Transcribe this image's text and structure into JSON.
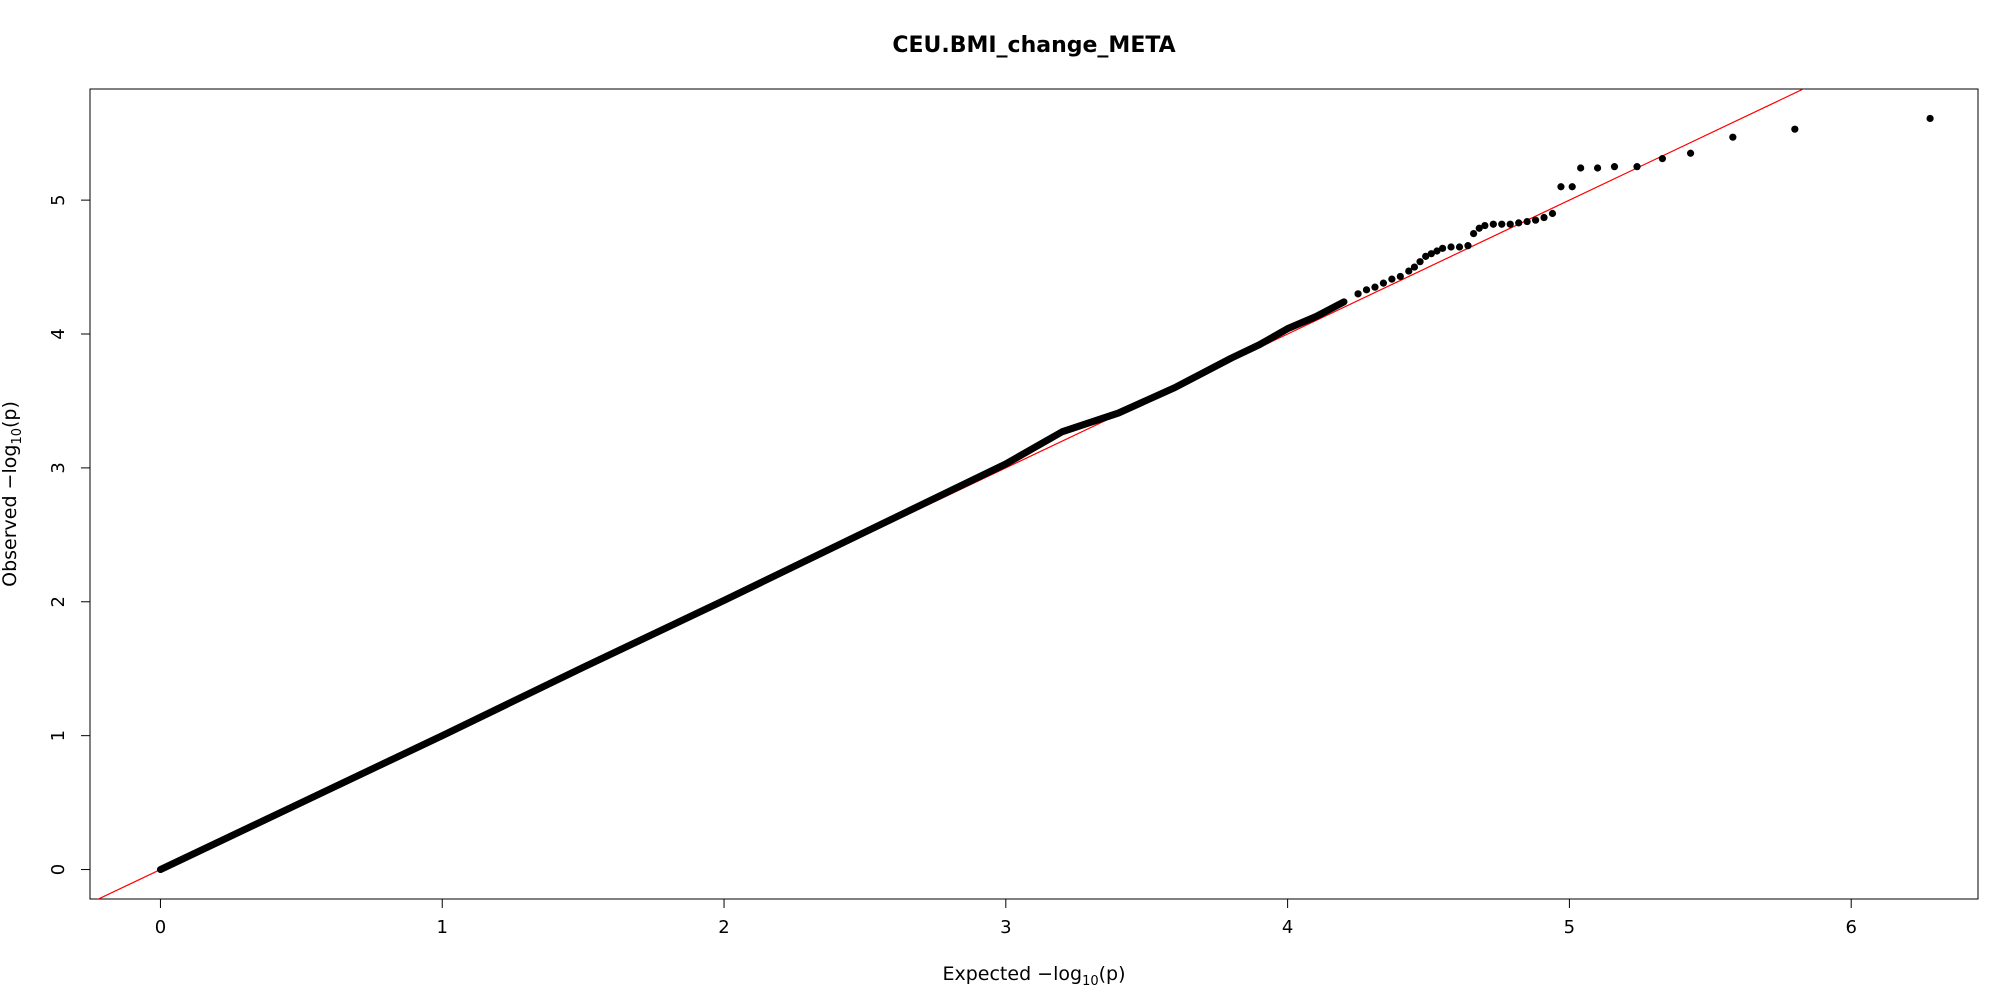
{
  "chart_data": {
    "type": "scatter",
    "title": "CEU.BMI_change_META",
    "xlabel": "Expected  −log10(p)",
    "xlabel_parts": {
      "prefix": "Expected  −log",
      "sub": "10",
      "suffix": "(p)"
    },
    "ylabel": "Observed  −log10(p)",
    "ylabel_parts": {
      "prefix": "Observed  −log",
      "sub": "10",
      "suffix": "(p)"
    },
    "xlim": [
      -0.25,
      6.45
    ],
    "ylim": [
      -0.22,
      5.83
    ],
    "xticks": [
      0,
      1,
      2,
      3,
      4,
      5,
      6
    ],
    "yticks": [
      0,
      1,
      2,
      3,
      4,
      5
    ],
    "grid": false,
    "colors": {
      "points": "#000000",
      "reference_line": "#ff0000"
    },
    "reference_line": {
      "slope": 1,
      "intercept": 0
    },
    "dense_segment": {
      "description_of_shape": "continuous band of points closely following y = x",
      "x": [
        0.0,
        0.5,
        1.0,
        1.5,
        2.0,
        2.5,
        3.0,
        3.2,
        3.4,
        3.6,
        3.8,
        3.9,
        4.0,
        4.1,
        4.2
      ],
      "y": [
        0.0,
        0.5,
        1.0,
        1.51,
        2.01,
        2.52,
        3.03,
        3.27,
        3.41,
        3.6,
        3.82,
        3.92,
        4.04,
        4.13,
        4.24
      ]
    },
    "points": [
      {
        "x": 4.25,
        "y": 4.3
      },
      {
        "x": 4.28,
        "y": 4.33
      },
      {
        "x": 4.31,
        "y": 4.35
      },
      {
        "x": 4.34,
        "y": 4.38
      },
      {
        "x": 4.37,
        "y": 4.41
      },
      {
        "x": 4.4,
        "y": 4.43
      },
      {
        "x": 4.43,
        "y": 4.47
      },
      {
        "x": 4.45,
        "y": 4.5
      },
      {
        "x": 4.47,
        "y": 4.54
      },
      {
        "x": 4.49,
        "y": 4.58
      },
      {
        "x": 4.51,
        "y": 4.6
      },
      {
        "x": 4.53,
        "y": 4.62
      },
      {
        "x": 4.55,
        "y": 4.64
      },
      {
        "x": 4.58,
        "y": 4.65
      },
      {
        "x": 4.61,
        "y": 4.65
      },
      {
        "x": 4.64,
        "y": 4.66
      },
      {
        "x": 4.66,
        "y": 4.75
      },
      {
        "x": 4.68,
        "y": 4.79
      },
      {
        "x": 4.7,
        "y": 4.81
      },
      {
        "x": 4.73,
        "y": 4.82
      },
      {
        "x": 4.76,
        "y": 4.82
      },
      {
        "x": 4.79,
        "y": 4.82
      },
      {
        "x": 4.82,
        "y": 4.83
      },
      {
        "x": 4.85,
        "y": 4.84
      },
      {
        "x": 4.88,
        "y": 4.85
      },
      {
        "x": 4.91,
        "y": 4.87
      },
      {
        "x": 4.94,
        "y": 4.9
      },
      {
        "x": 4.97,
        "y": 5.1
      },
      {
        "x": 5.01,
        "y": 5.1
      },
      {
        "x": 5.04,
        "y": 5.24
      },
      {
        "x": 5.1,
        "y": 5.24
      },
      {
        "x": 5.16,
        "y": 5.25
      },
      {
        "x": 5.24,
        "y": 5.25
      },
      {
        "x": 5.33,
        "y": 5.31
      },
      {
        "x": 5.43,
        "y": 5.35
      },
      {
        "x": 5.58,
        "y": 5.47
      },
      {
        "x": 5.8,
        "y": 5.53
      },
      {
        "x": 6.28,
        "y": 5.61
      }
    ]
  }
}
